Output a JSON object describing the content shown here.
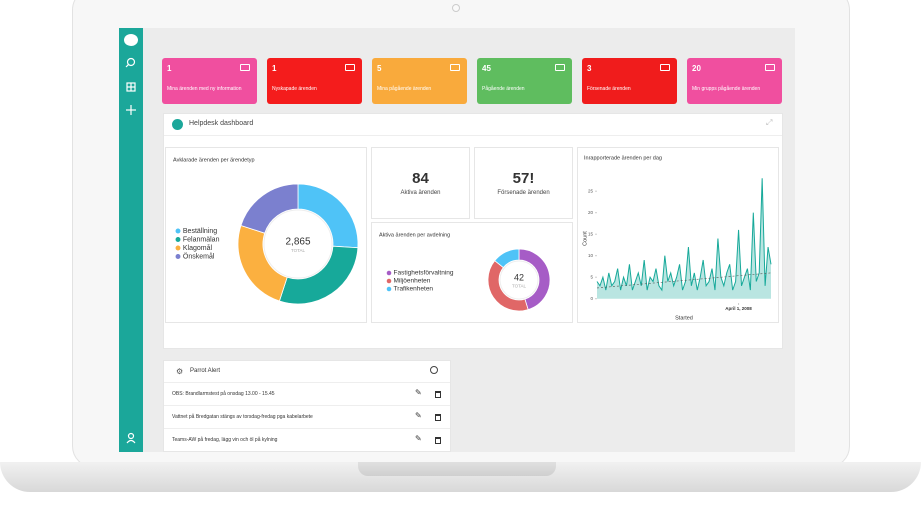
{
  "tiles": [
    {
      "count": 1,
      "label": "Mina ärenden med ny information",
      "color": "#f04f9f"
    },
    {
      "count": 1,
      "label": "Nyskapade ärenden",
      "color": "#f41c1c"
    },
    {
      "count": 5,
      "label": "Mina pågående ärenden",
      "color": "#f9aa3c"
    },
    {
      "count": 45,
      "label": "Pågående ärenden",
      "color": "#5fbd5f"
    },
    {
      "count": 3,
      "label": "Försenade ärenden",
      "color": "#f01c1c"
    },
    {
      "count": 20,
      "label": "Min grupps pågående ärenden",
      "color": "#f04f9f"
    }
  ],
  "dashboard": {
    "title": "Helpdesk dashboard",
    "donut_type": {
      "title": "Avklarade ärenden per ärendetyp",
      "total": "2,865",
      "total_caption": "TOTAL",
      "series": [
        {
          "name": "Beställning",
          "color": "#4fc3f7",
          "value": 745
        },
        {
          "name": "Felanmälan",
          "color": "#17a99a",
          "value": 831
        },
        {
          "name": "Klagomål",
          "color": "#fbb040",
          "value": 716
        },
        {
          "name": "Önskemål",
          "color": "#7b80cf",
          "value": 573
        }
      ]
    },
    "stats": [
      {
        "value": "84",
        "label": "Aktiva ärenden"
      },
      {
        "value": "57!",
        "label": "Försenade ärenden"
      }
    ],
    "donut_dept": {
      "title": "Aktiva ärenden per avdelning",
      "total": 42,
      "total_caption": "TOTAL",
      "series": [
        {
          "name": "Fastighetsförvaltning",
          "color": "#a65cc6",
          "value": 19
        },
        {
          "name": "Miljöenheten",
          "color": "#e06767",
          "value": 17
        },
        {
          "name": "Trafikenheten",
          "color": "#4fc3f7",
          "value": 6
        }
      ]
    },
    "line_chart": {
      "type": "line",
      "title": "Inrapporterade ärenden per dag",
      "y_label": "Count",
      "x_label": "Started",
      "color": "#17a99a",
      "values": [
        4,
        3,
        5,
        2,
        6,
        3,
        4,
        7,
        2,
        5,
        3,
        8,
        2,
        4,
        6,
        3,
        9,
        2,
        5,
        4,
        7,
        3,
        2,
        10,
        4,
        6,
        3,
        5,
        8,
        2,
        4,
        12,
        3,
        6,
        2,
        5,
        9,
        3,
        4,
        7,
        2,
        14,
        5,
        3,
        6,
        8,
        2,
        4,
        16,
        3,
        5,
        7,
        2,
        20,
        4,
        6,
        28,
        3,
        12,
        8
      ],
      "trend": [
        2.5,
        6
      ],
      "xlim": [
        0,
        59
      ],
      "xticks": [
        {
          "value": 48,
          "label": "April 1, 2008"
        }
      ],
      "ylim": [
        -1,
        29
      ],
      "yticks": [
        0,
        5,
        10,
        15,
        20,
        25
      ]
    }
  },
  "alerts": {
    "title": "Parrot Alert",
    "rows": [
      "OBS: Brandlarmstest på onsdag 13.00 - 15.45",
      "Vattnet på Bredgatan stängs av torsdag-fredag pga kabelarbete",
      "Teams-AW på fredag, lägg vin och öl på kylning"
    ]
  }
}
